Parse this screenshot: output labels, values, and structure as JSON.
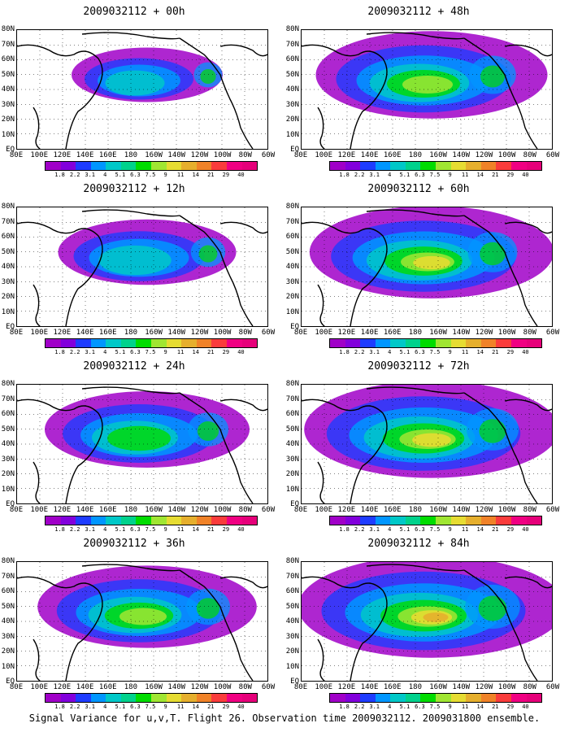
{
  "panels": [
    {
      "title": "2009032112 + 00h",
      "intensity": 0.35,
      "spread": 0.3
    },
    {
      "title": "2009032112 + 48h",
      "intensity": 0.55,
      "spread": 0.75
    },
    {
      "title": "2009032112 + 12h",
      "intensity": 0.4,
      "spread": 0.45
    },
    {
      "title": "2009032112 + 60h",
      "intensity": 0.62,
      "spread": 0.82
    },
    {
      "title": "2009032112 + 24h",
      "intensity": 0.48,
      "spread": 0.6
    },
    {
      "title": "2009032112 + 72h",
      "intensity": 0.7,
      "spread": 0.88
    },
    {
      "title": "2009032112 + 36h",
      "intensity": 0.52,
      "spread": 0.68
    },
    {
      "title": "2009032112 + 84h",
      "intensity": 0.78,
      "spread": 0.95
    }
  ],
  "lat_labels": [
    "80N",
    "70N",
    "60N",
    "50N",
    "40N",
    "30N",
    "20N",
    "10N",
    "EQ"
  ],
  "lon_labels": [
    "80E",
    "100E",
    "120E",
    "140E",
    "160E",
    "180",
    "160W",
    "140W",
    "120W",
    "100W",
    "80W",
    "60W"
  ],
  "colorbar": {
    "values": [
      "1.8",
      "2.2",
      "3.1",
      "4",
      "5.1",
      "6.3",
      "7.5",
      "9",
      "11",
      "14",
      "21",
      "29",
      "40"
    ],
    "colors": [
      "#a000c8",
      "#8200dc",
      "#1e3cff",
      "#0096ff",
      "#00c8c8",
      "#00d28c",
      "#00dc00",
      "#a0e632",
      "#e6dc32",
      "#e6af2d",
      "#f08228",
      "#fa3c3c",
      "#f00082"
    ]
  },
  "caption": "Signal Variance for u,v,T. Flight 26. Observation time 2009032112. 2009031800 ensemble."
}
